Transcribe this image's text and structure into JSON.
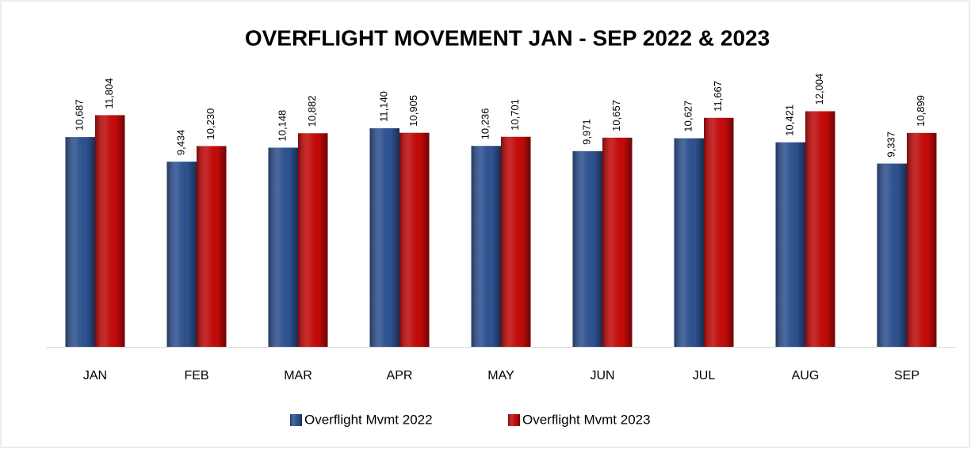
{
  "chart_data": {
    "type": "bar",
    "title": "OVERFLIGHT MOVEMENT JAN - SEP  2022 & 2023",
    "categories": [
      "JAN",
      "FEB",
      "MAR",
      "APR",
      "MAY",
      "JUN",
      "JUL",
      "AUG",
      "SEP"
    ],
    "series": [
      {
        "name": "Overflight Mvmt 2022",
        "color": "#2e5291",
        "values": [
          10687,
          9434,
          10148,
          11140,
          10236,
          9971,
          10627,
          10421,
          9337
        ],
        "value_labels": [
          "10,687",
          "9,434",
          "10,148",
          "11,140",
          "10,236",
          "9,971",
          "10,627",
          "10,421",
          "9,337"
        ]
      },
      {
        "name": "Overflight Mvmt 2023",
        "color": "#c40a0a",
        "values": [
          11804,
          10230,
          10882,
          10905,
          10701,
          10657,
          11667,
          12004,
          10899
        ],
        "value_labels": [
          "11,804",
          "10,230",
          "10,882",
          "10,905",
          "10,701",
          "10,657",
          "11,667",
          "12,004",
          "10,899"
        ]
      }
    ],
    "ylim": [
      0,
      14000
    ]
  }
}
